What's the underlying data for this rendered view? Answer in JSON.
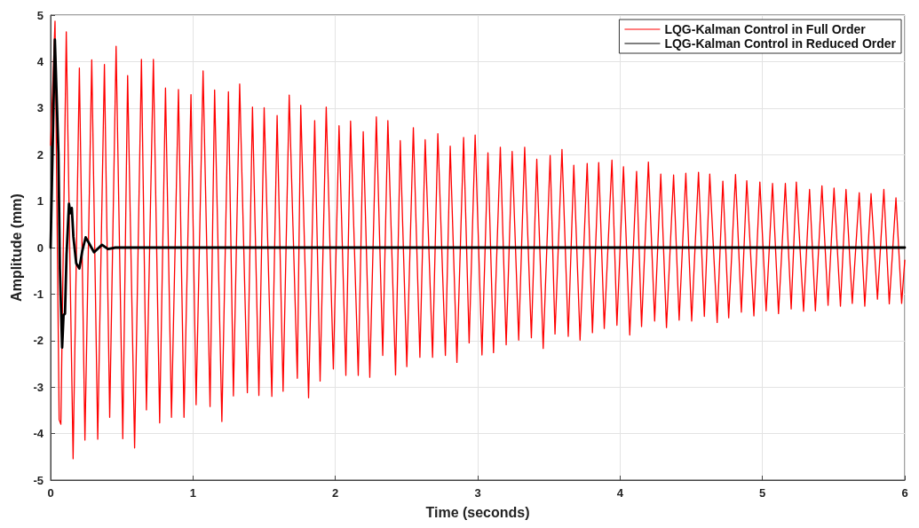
{
  "chart_data": {
    "type": "line",
    "xlabel": "Time (seconds)",
    "ylabel": "Amplitude (mm)",
    "xlim": [
      0,
      6
    ],
    "xticks": [
      0,
      1,
      2,
      3,
      4,
      5,
      6
    ],
    "ylim": [
      -5,
      5
    ],
    "yticks": [
      -5,
      -4,
      -3,
      -2,
      -1,
      0,
      1,
      2,
      3,
      4,
      5
    ],
    "grid": true,
    "legend": "top right",
    "marker": "none",
    "line_style": "solid",
    "series": [
      {
        "name": "LQG-Kalman Control in Full Order",
        "color": "#ff0000",
        "x": [
          0,
          0.031,
          0.06,
          0.072,
          0.11,
          0.158,
          0.202,
          0.241,
          0.289,
          0.331,
          0.378,
          0.415,
          0.46,
          0.507,
          0.541,
          0.59,
          0.638,
          0.673,
          0.722,
          0.766,
          0.807,
          0.849,
          0.898,
          0.937,
          0.986,
          1.022,
          1.071,
          1.12,
          1.152,
          1.203,
          1.249,
          1.284,
          1.328,
          1.382,
          1.418,
          1.463,
          1.5,
          1.554,
          1.591,
          1.633,
          1.676,
          1.733,
          1.757,
          1.812,
          1.855,
          1.893,
          1.936,
          1.986,
          2.026,
          2.074,
          2.107,
          2.161,
          2.196,
          2.242,
          2.288,
          2.333,
          2.369,
          2.423,
          2.456,
          2.502,
          2.548,
          2.594,
          2.631,
          2.683,
          2.72,
          2.773,
          2.807,
          2.854,
          2.901,
          2.94,
          2.982,
          3.03,
          3.072,
          3.111,
          3.159,
          3.2,
          3.242,
          3.288,
          3.33,
          3.377,
          3.415,
          3.46,
          3.509,
          3.543,
          3.592,
          3.636,
          3.675,
          3.719,
          3.769,
          3.806,
          3.85,
          3.889,
          3.943,
          3.978,
          4.024,
          4.068,
          4.116,
          4.151,
          4.199,
          4.243,
          4.286,
          4.326,
          4.376,
          4.415,
          4.462,
          4.503,
          4.551,
          4.592,
          4.63,
          4.682,
          4.722,
          4.763,
          4.811,
          4.852,
          4.89,
          4.94,
          4.982,
          5.026,
          5.071,
          5.113,
          5.161,
          5.202,
          5.238,
          5.289,
          5.331,
          5.372,
          5.418,
          5.461,
          5.503,
          5.548,
          5.587,
          5.631,
          5.68,
          5.719,
          5.763,
          5.808,
          5.853,
          5.891,
          5.938,
          5.978,
          6
        ],
        "values": [
          2.2,
          4.87,
          -3.7,
          -3.8,
          4.64,
          -4.54,
          3.86,
          -4.14,
          4.04,
          -4.12,
          3.94,
          -3.65,
          4.33,
          -4.11,
          3.7,
          -4.31,
          4.05,
          -3.49,
          4.05,
          -3.77,
          3.43,
          -3.65,
          3.4,
          -3.65,
          3.29,
          -3.38,
          3.8,
          -3.42,
          3.39,
          -3.74,
          3.35,
          -3.19,
          3.52,
          -3.12,
          3.02,
          -3.18,
          3.01,
          -3.2,
          2.84,
          -3.09,
          3.28,
          -2.81,
          3.06,
          -3.23,
          2.73,
          -2.87,
          3.02,
          -2.61,
          2.62,
          -2.75,
          2.72,
          -2.75,
          2.49,
          -2.79,
          2.81,
          -2.32,
          2.73,
          -2.74,
          2.3,
          -2.56,
          2.58,
          -2.36,
          2.32,
          -2.36,
          2.45,
          -2.32,
          2.18,
          -2.47,
          2.37,
          -2.05,
          2.42,
          -2.31,
          2.04,
          -2.26,
          2.16,
          -2.09,
          2.07,
          -1.99,
          2.16,
          -1.94,
          1.9,
          -2.17,
          1.98,
          -1.86,
          2.11,
          -1.91,
          1.77,
          -1.99,
          1.81,
          -1.83,
          1.83,
          -1.74,
          1.88,
          -1.67,
          1.74,
          -1.88,
          1.64,
          -1.7,
          1.84,
          -1.58,
          1.58,
          -1.72,
          1.56,
          -1.56,
          1.6,
          -1.58,
          1.62,
          -1.48,
          1.58,
          -1.61,
          1.43,
          -1.51,
          1.57,
          -1.39,
          1.44,
          -1.47,
          1.41,
          -1.36,
          1.38,
          -1.42,
          1.38,
          -1.32,
          1.41,
          -1.37,
          1.25,
          -1.36,
          1.33,
          -1.24,
          1.28,
          -1.26,
          1.25,
          -1.2,
          1.18,
          -1.26,
          1.16,
          -1.11,
          1.25,
          -1.21,
          1.07,
          -1.2,
          -0.27
        ]
      },
      {
        "name": "LQG-Kalman Control in Reduced Order",
        "color": "#000000",
        "x": [
          0,
          0.03,
          0.055,
          0.065,
          0.081,
          0.091,
          0.101,
          0.112,
          0.129,
          0.139,
          0.149,
          0.16,
          0.18,
          0.202,
          0.222,
          0.246,
          0.267,
          0.305,
          0.361,
          0.403,
          0.455,
          6
        ],
        "values": [
          0,
          4.47,
          2.03,
          -0.45,
          -2.15,
          -1.45,
          -1.42,
          -0.15,
          0.94,
          0.74,
          0.85,
          0.23,
          -0.34,
          -0.45,
          -0.08,
          0.22,
          0.11,
          -0.1,
          0.06,
          -0.03,
          0,
          0
        ]
      }
    ]
  }
}
